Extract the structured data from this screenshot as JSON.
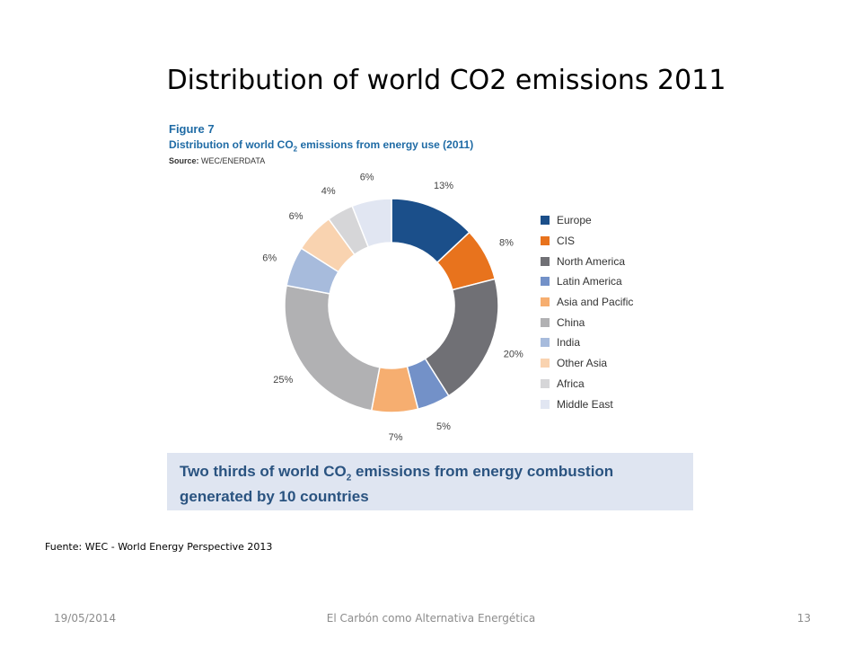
{
  "slide": {
    "title": "Distribution of world CO2 emissions 2011",
    "source_note": "Fuente: WEC - World Energy Perspective 2013",
    "footer_date": "19/05/2014",
    "footer_title": "El Carbón como Alternativa Energética",
    "page_number": "13"
  },
  "figure": {
    "label": "Figure 7",
    "caption_pre": "Distribution of world CO",
    "caption_sub": "2",
    "caption_post": " emissions from energy use (2011)",
    "source_label": "Source:",
    "source_value": "WEC/ENERDATA",
    "banner_line1_pre": "Two thirds of world CO",
    "banner_line1_sub": "2",
    "banner_line1_post": " emissions from energy combustion",
    "banner_line2": "generated by 10 countries"
  },
  "chart_data": {
    "type": "pie",
    "donut": true,
    "legend_position": "right",
    "unit": "%",
    "categories": [
      "Europe",
      "CIS",
      "North America",
      "Latin America",
      "Asia and Pacific",
      "China",
      "India",
      "Other Asia",
      "Africa",
      "Middle East"
    ],
    "values": [
      13,
      8,
      20,
      5,
      7,
      25,
      6,
      6,
      4,
      6
    ],
    "labels": [
      "13%",
      "8%",
      "20%",
      "5%",
      "7%",
      "25%",
      "6%",
      "6%",
      "4%",
      "6%"
    ],
    "colors": [
      "#1b4f8a",
      "#e8731d",
      "#707075",
      "#7391c8",
      "#f6ae70",
      "#b1b1b3",
      "#a7bbdc",
      "#f9d3b0",
      "#d6d6d8",
      "#e1e6f2"
    ]
  }
}
